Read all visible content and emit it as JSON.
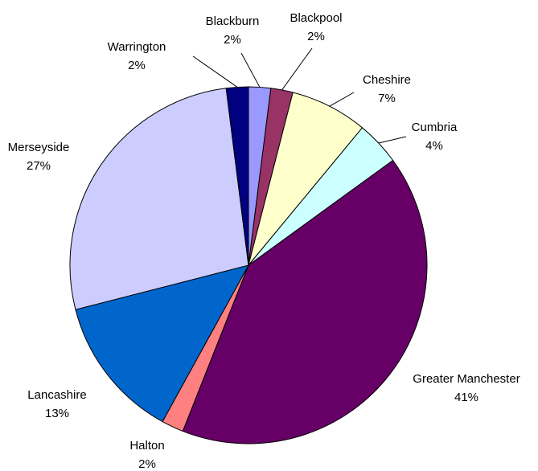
{
  "chart_data": {
    "type": "pie",
    "categories": [
      "Blackburn",
      "Blackpool",
      "Cheshire",
      "Cumbria",
      "Greater Manchester",
      "Halton",
      "Lancashire",
      "Merseyside",
      "Warrington"
    ],
    "values": [
      2,
      2,
      7,
      4,
      41,
      2,
      13,
      27,
      2
    ],
    "value_labels": [
      "2%",
      "2%",
      "7%",
      "4%",
      "41%",
      "2%",
      "13%",
      "27%",
      "2%"
    ],
    "colors": [
      "#9999ff",
      "#993366",
      "#ffffcc",
      "#ccffff",
      "#660066",
      "#ff8080",
      "#0066cc",
      "#ccccff",
      "#000080"
    ]
  }
}
